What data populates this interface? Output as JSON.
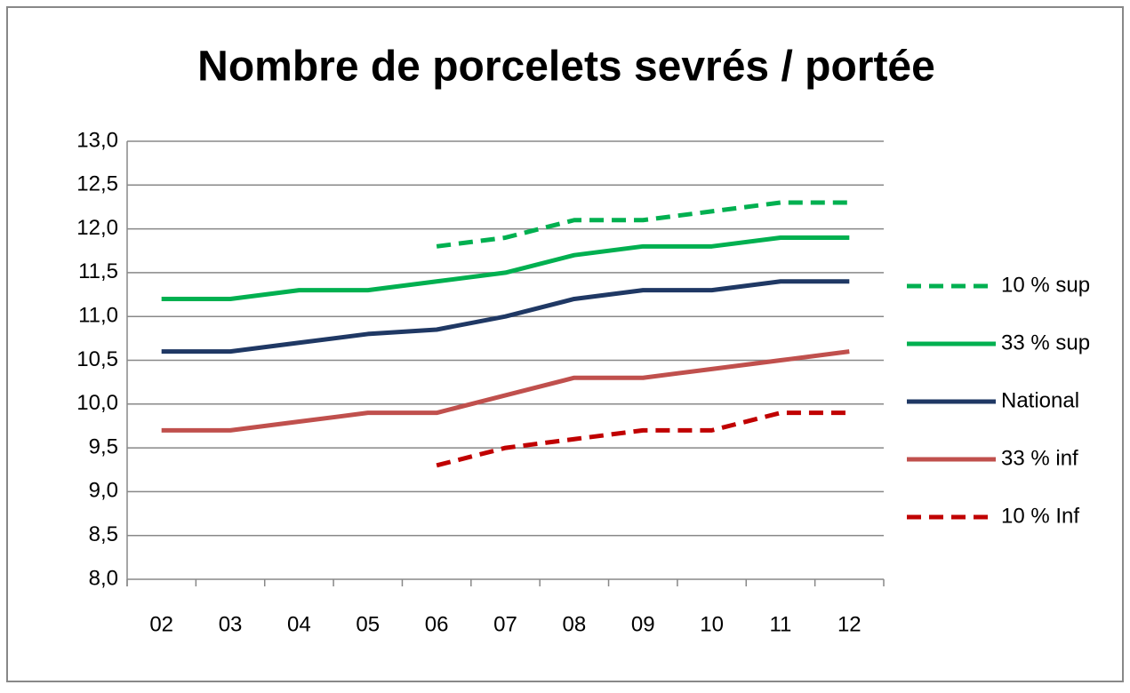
{
  "chart_data": {
    "type": "line",
    "title": "Nombre de porcelets sevrés / portée",
    "categories": [
      "02",
      "03",
      "04",
      "05",
      "06",
      "07",
      "08",
      "09",
      "10",
      "11",
      "12"
    ],
    "series": [
      {
        "name": "10 % sup",
        "color": "#00b050",
        "dashed": true,
        "values": [
          null,
          null,
          null,
          null,
          11.8,
          11.9,
          12.1,
          12.1,
          12.2,
          12.3,
          12.3
        ]
      },
      {
        "name": "33 % sup",
        "color": "#00b050",
        "dashed": false,
        "values": [
          11.2,
          11.2,
          11.3,
          11.3,
          11.4,
          11.5,
          11.7,
          11.8,
          11.8,
          11.9,
          11.9
        ]
      },
      {
        "name": "National",
        "color": "#1f3864",
        "dashed": false,
        "values": [
          10.6,
          10.6,
          10.7,
          10.8,
          10.85,
          11.0,
          11.2,
          11.3,
          11.3,
          11.4,
          11.4
        ]
      },
      {
        "name": "33 % inf",
        "color": "#c0504d",
        "dashed": false,
        "values": [
          9.7,
          9.7,
          9.8,
          9.9,
          9.9,
          10.1,
          10.3,
          10.3,
          10.4,
          10.5,
          10.6
        ]
      },
      {
        "name": "10 % Inf",
        "color": "#c00000",
        "dashed": true,
        "values": [
          null,
          null,
          null,
          null,
          9.3,
          9.5,
          9.6,
          9.7,
          9.7,
          9.9,
          9.9
        ]
      }
    ],
    "ylim": [
      8,
      13
    ],
    "yticks": [
      {
        "value": 8,
        "label": "8,0"
      },
      {
        "value": 8.5,
        "label": "8,5"
      },
      {
        "value": 9,
        "label": "9,0"
      },
      {
        "value": 9.5,
        "label": "9,5"
      },
      {
        "value": 10,
        "label": "10,0"
      },
      {
        "value": 10.5,
        "label": "10,5"
      },
      {
        "value": 11,
        "label": "11,0"
      },
      {
        "value": 11.5,
        "label": "11,5"
      },
      {
        "value": 12,
        "label": "12,0"
      },
      {
        "value": 12.5,
        "label": "12,5"
      },
      {
        "value": 13,
        "label": "13,0"
      }
    ],
    "grid": true,
    "legend": "right"
  }
}
